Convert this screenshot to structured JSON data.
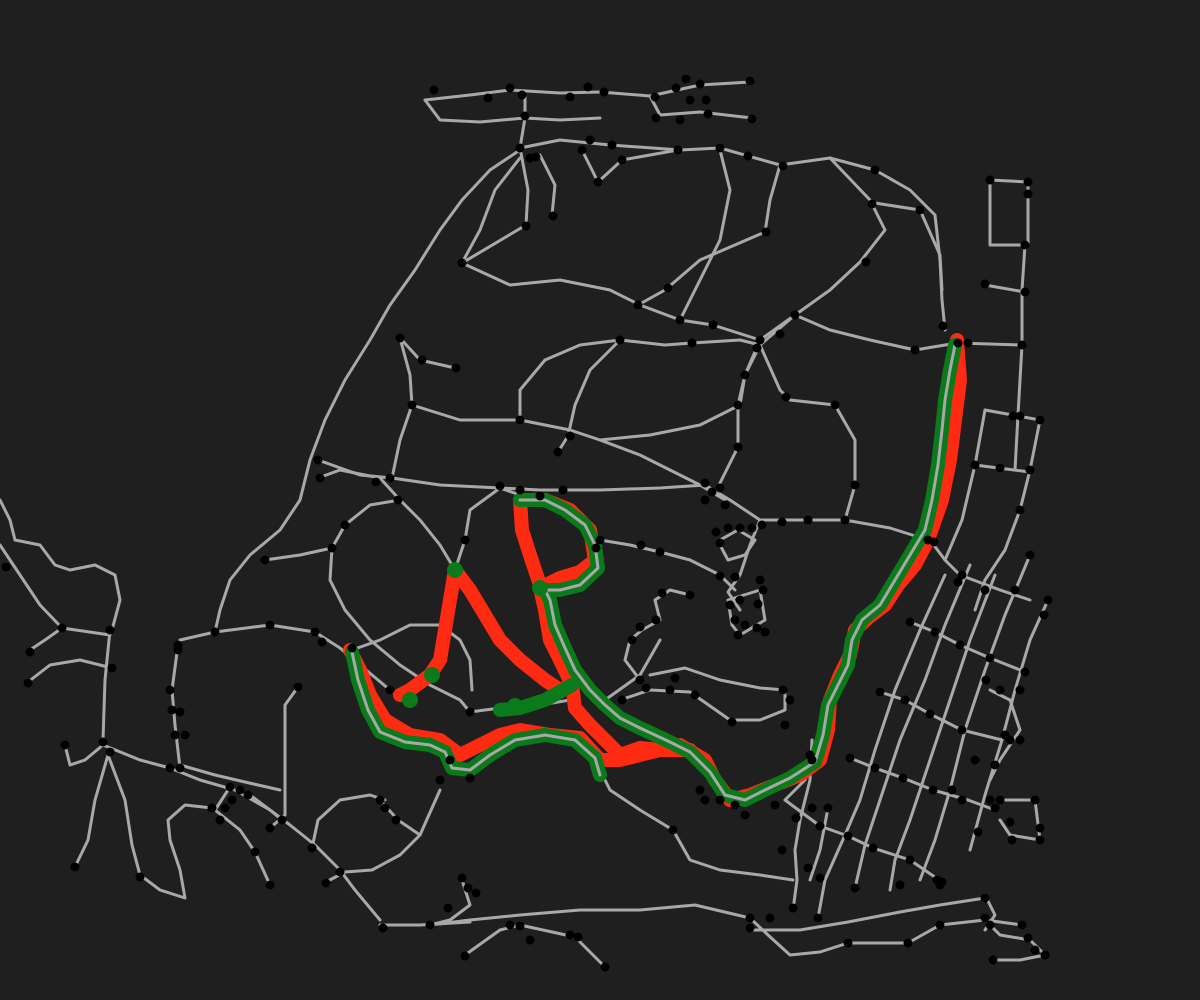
{
  "map": {
    "colors": {
      "background": "#1f1f1f",
      "road": "#a8a8a8",
      "node": "#000000",
      "route_a": "#ff2a12",
      "route_b": "#0b7a1a"
    }
  }
}
